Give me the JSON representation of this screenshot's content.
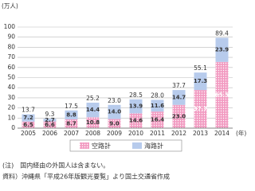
{
  "chart_data": {
    "type": "stacked-bar",
    "y_unit": "(万人)",
    "x_unit": "(年)",
    "categories": [
      "2005",
      "2006",
      "2007",
      "2008",
      "2009",
      "2010",
      "2011",
      "2012",
      "2013",
      "2014"
    ],
    "series": [
      {
        "name": "空路計",
        "color": "#f29cc2",
        "pattern": "dots",
        "values": [
          6.5,
          6.6,
          8.7,
          10.8,
          9.0,
          14.6,
          16.4,
          23.0,
          37.7,
          65.5
        ],
        "value_labels": [
          "6.5",
          "6.6",
          "8.7",
          "10.8",
          "9.0",
          "14.6",
          "16.4",
          "23.0",
          "37.7",
          "65.5"
        ]
      },
      {
        "name": "海路計",
        "color": "#b7cbec",
        "values": [
          7.2,
          2.7,
          8.8,
          14.4,
          14.0,
          13.9,
          11.6,
          14.7,
          17.3,
          23.9
        ],
        "value_labels": [
          "7.2",
          "2.7",
          "8.8",
          "14.4",
          "14.0",
          "13.9",
          "11.6",
          "14.7",
          "17.3",
          "23.9"
        ]
      }
    ],
    "totals": {
      "values": [
        13.7,
        9.3,
        17.5,
        25.2,
        23.0,
        28.5,
        28.0,
        37.7,
        55.1,
        89.4
      ],
      "value_labels": [
        "13.7",
        "9.3",
        "17.5",
        "25.2",
        "23.0",
        "28.5",
        "28.0",
        "37.7",
        "55.1",
        "89.4"
      ]
    },
    "ylim": [
      0,
      100
    ],
    "yticks": [
      0,
      10,
      20,
      30,
      40,
      50,
      60,
      70,
      80,
      90,
      100
    ],
    "grid": true,
    "legend": "bottom",
    "notes": [
      "(注)　国内経由の外国人は含まない。",
      "資料）沖縄県「平成26年版観光要覧」より国土交通省作成"
    ]
  }
}
